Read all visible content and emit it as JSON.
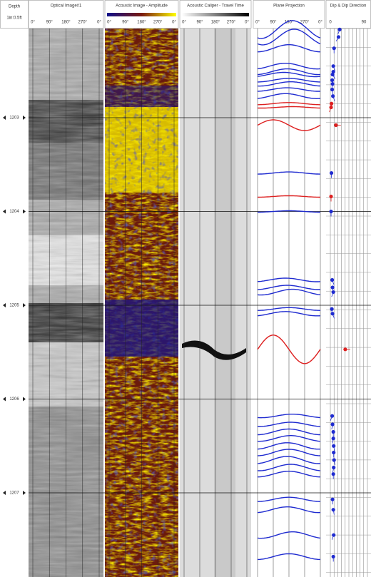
{
  "header": {
    "depth": "Depth",
    "scale": "1in:0.5ft"
  },
  "tracks": [
    {
      "title": "Optical Image#1",
      "ticks": [
        "0°",
        "90°",
        "180°",
        "270°",
        "0°"
      ]
    },
    {
      "title": "Acoustic Image - Amplitude",
      "ticks": [
        "0°",
        "90°",
        "180°",
        "270°",
        "0°"
      ]
    },
    {
      "title": "Acoustic Caliper - Travel Time",
      "ticks": [
        "0°",
        "90°",
        "180°",
        "270°",
        "0°"
      ]
    },
    {
      "title": "Plane Projection",
      "ticks": [
        "0°",
        "90°",
        "180°",
        "270°",
        "0°"
      ]
    }
  ],
  "dip_track": {
    "title": "Dip & Dip Direction",
    "ticks": [
      0,
      90
    ]
  },
  "depth_labels": [
    1203,
    1204,
    1205,
    1206,
    1207
  ],
  "planes": [
    {
      "depth": 1202.06,
      "dip": 25,
      "azimuth": 200,
      "color": "#1f2bd0"
    },
    {
      "depth": 1202.14,
      "dip": 22,
      "azimuth": 210,
      "color": "#1f2bd0"
    },
    {
      "depth": 1202.26,
      "dip": 10,
      "azimuth": 180,
      "color": "#1f2bd0"
    },
    {
      "depth": 1202.45,
      "dip": 8,
      "azimuth": 160,
      "color": "#1f2bd0"
    },
    {
      "depth": 1202.51,
      "dip": 8,
      "azimuth": 170,
      "color": "#1f2bd0"
    },
    {
      "depth": 1202.54,
      "dip": 6,
      "azimuth": 150,
      "color": "#1f2bd0"
    },
    {
      "depth": 1202.6,
      "dip": 5,
      "azimuth": 180,
      "color": "#1f2bd0"
    },
    {
      "depth": 1202.64,
      "dip": 6,
      "azimuth": 190,
      "color": "#1f2bd0"
    },
    {
      "depth": 1202.7,
      "dip": 5,
      "azimuth": 170,
      "color": "#1f2bd0"
    },
    {
      "depth": 1202.77,
      "dip": 7,
      "azimuth": 160,
      "color": "#1f2bd0"
    },
    {
      "depth": 1202.85,
      "dip": 3,
      "azimuth": 180,
      "color": "#dd2020"
    },
    {
      "depth": 1202.89,
      "dip": 2,
      "azimuth": 200,
      "color": "#dd2020"
    },
    {
      "depth": 1203.08,
      "dip": 15,
      "azimuth": 90,
      "color": "#dd2020"
    },
    {
      "depth": 1203.59,
      "dip": 3,
      "azimuth": 180,
      "color": "#1f2bd0"
    },
    {
      "depth": 1203.84,
      "dip": 2,
      "azimuth": 180,
      "color": "#dd2020"
    },
    {
      "depth": 1204.0,
      "dip": 2,
      "azimuth": 180,
      "color": "#1f2bd0"
    },
    {
      "depth": 1204.73,
      "dip": 5,
      "azimuth": 160,
      "color": "#1f2bd0"
    },
    {
      "depth": 1204.81,
      "dip": 6,
      "azimuth": 170,
      "color": "#1f2bd0"
    },
    {
      "depth": 1204.86,
      "dip": 8,
      "azimuth": 200,
      "color": "#1f2bd0"
    },
    {
      "depth": 1205.04,
      "dip": 4,
      "azimuth": 180,
      "color": "#1f2bd0"
    },
    {
      "depth": 1205.09,
      "dip": 6,
      "azimuth": 160,
      "color": "#1f2bd0"
    },
    {
      "depth": 1205.47,
      "dip": 40,
      "azimuth": 90,
      "color": "#dd2020"
    },
    {
      "depth": 1206.18,
      "dip": 5,
      "azimuth": 200,
      "color": "#1f2bd0"
    },
    {
      "depth": 1206.27,
      "dip": 6,
      "azimuth": 190,
      "color": "#1f2bd0"
    },
    {
      "depth": 1206.35,
      "dip": 8,
      "azimuth": 180,
      "color": "#1f2bd0"
    },
    {
      "depth": 1206.42,
      "dip": 8,
      "azimuth": 190,
      "color": "#1f2bd0"
    },
    {
      "depth": 1206.5,
      "dip": 9,
      "azimuth": 170,
      "color": "#1f2bd0"
    },
    {
      "depth": 1206.57,
      "dip": 9,
      "azimuth": 180,
      "color": "#1f2bd0"
    },
    {
      "depth": 1206.65,
      "dip": 10,
      "azimuth": 170,
      "color": "#1f2bd0"
    },
    {
      "depth": 1206.73,
      "dip": 9,
      "azimuth": 190,
      "color": "#1f2bd0"
    },
    {
      "depth": 1206.8,
      "dip": 8,
      "azimuth": 180,
      "color": "#1f2bd0"
    },
    {
      "depth": 1207.07,
      "dip": 6,
      "azimuth": 180,
      "color": "#1f2bd0"
    },
    {
      "depth": 1207.18,
      "dip": 8,
      "azimuth": 170,
      "color": "#1f2bd0"
    },
    {
      "depth": 1207.45,
      "dip": 9,
      "azimuth": 200,
      "color": "#1f2bd0"
    },
    {
      "depth": 1207.68,
      "dip": 8,
      "azimuth": 180,
      "color": "#1f2bd0"
    }
  ]
}
